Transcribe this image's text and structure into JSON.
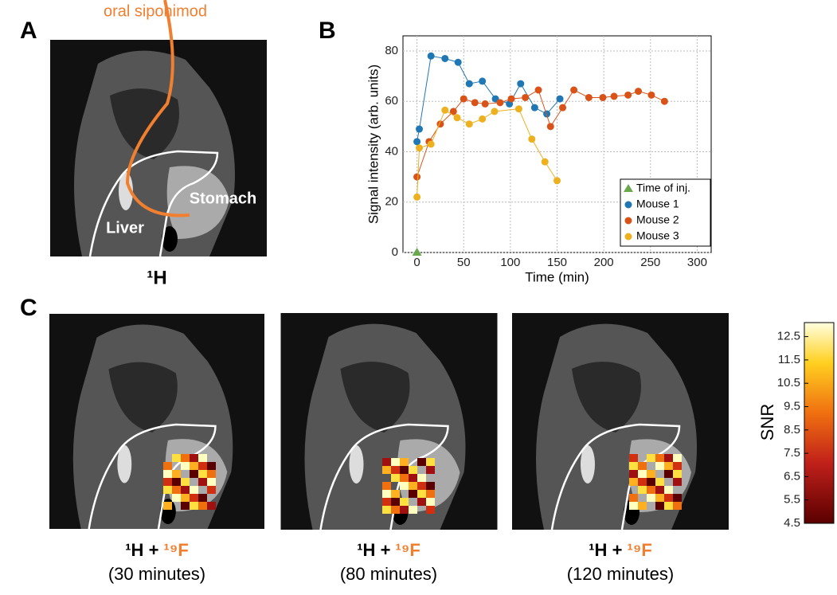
{
  "panels": {
    "a": {
      "letter": "A",
      "drug": "oral siponimod",
      "stomach": "Stomach",
      "liver": "Liver",
      "caption": "¹H"
    },
    "b": {
      "letter": "B"
    },
    "c": {
      "letter": "C",
      "colorbar_label": "SNR",
      "colorbar_lim": [
        4.5,
        13.1
      ],
      "colorbar_ticks": [
        4.5,
        5.5,
        6.5,
        7.5,
        8.5,
        9.5,
        10.5,
        11.5,
        12.5
      ],
      "captions": [
        {
          "h": "¹H",
          "plus": "+",
          "f": "¹⁹F",
          "time": "(30 minutes)"
        },
        {
          "h": "¹H",
          "plus": "+",
          "f": "¹⁹F",
          "time": "(80 minutes)"
        },
        {
          "h": "¹H",
          "plus": "+",
          "f": "¹⁹F",
          "time": "(120 minutes)"
        }
      ]
    }
  },
  "chart_data": {
    "type": "line",
    "xlabel": "Time (min)",
    "ylabel": "Signal intensity (arb. units)",
    "xlim": [
      -15,
      315
    ],
    "ylim": [
      0,
      86
    ],
    "xticks": [
      0,
      50,
      100,
      150,
      200,
      250,
      300
    ],
    "yticks": [
      0,
      20,
      40,
      60,
      80
    ],
    "grid": true,
    "legend": "lower right",
    "series": [
      {
        "name": "Time of inj.",
        "color": "#6aa84f",
        "marker": "triangle",
        "line": false,
        "x": [
          0
        ],
        "values": [
          0
        ]
      },
      {
        "name": "Mouse 1",
        "color": "#1f77b4",
        "marker": "circle",
        "line": true,
        "x": [
          0,
          2.5,
          15,
          30,
          44,
          56,
          70,
          84,
          99,
          111,
          126,
          139,
          153
        ],
        "values": [
          44,
          49,
          78,
          77,
          75.5,
          67,
          68,
          61,
          59,
          67,
          57.5,
          55,
          61
        ]
      },
      {
        "name": "Mouse 2",
        "color": "#d95319",
        "marker": "circle",
        "line": true,
        "x": [
          0,
          13,
          25,
          39,
          50,
          62,
          73,
          89,
          101,
          116,
          130,
          143,
          156,
          168,
          184,
          199,
          211,
          226,
          237,
          251,
          265
        ],
        "values": [
          30,
          44,
          51,
          56,
          61,
          59.5,
          59,
          59.5,
          61,
          61.5,
          64.5,
          50,
          57.5,
          64.5,
          61.5,
          61.5,
          62,
          62.5,
          64,
          62.5,
          60
        ]
      },
      {
        "name": "Mouse 3",
        "color": "#edb120",
        "marker": "circle",
        "line": true,
        "x": [
          0,
          2.5,
          15,
          30,
          43,
          56,
          70,
          83,
          109,
          123,
          137,
          150
        ],
        "values": [
          22,
          41.5,
          43,
          56.5,
          53.5,
          51,
          53,
          56,
          57,
          45,
          36,
          28.5
        ]
      }
    ]
  }
}
